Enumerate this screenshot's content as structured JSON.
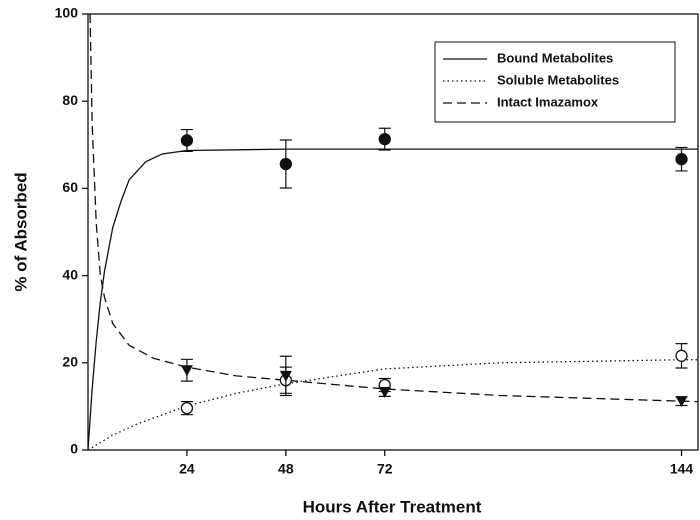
{
  "chart_data": {
    "type": "scatter",
    "xlabel": "Hours After Treatment",
    "ylabel": "% of Absorbed",
    "xlim": [
      0,
      148
    ],
    "ylim": [
      0,
      100
    ],
    "xticks": [
      24,
      48,
      72,
      144
    ],
    "yticks": [
      0,
      20,
      40,
      60,
      80,
      100
    ],
    "grid": false,
    "legend": "upper right",
    "series": [
      {
        "name": "Bound Metabolites",
        "color": "#111111",
        "line": "solid",
        "marker": "filled-circle",
        "x": [
          24,
          48,
          72,
          144
        ],
        "values": [
          71,
          65.6,
          71.3,
          66.7
        ],
        "errors": [
          2.5,
          5.5,
          2.5,
          2.7
        ],
        "fit_x": [
          0,
          1,
          2,
          3,
          4,
          6,
          8,
          10,
          14,
          18,
          24,
          48,
          72,
          144,
          148
        ],
        "fit_values": [
          0,
          13.9,
          25,
          34,
          41,
          51,
          57,
          62,
          66.1,
          67.9,
          68.7,
          69,
          69,
          69,
          69
        ]
      },
      {
        "name": "Soluble Metabolites",
        "color": "#111111",
        "line": "dotted",
        "marker": "open-circle",
        "x": [
          24,
          48,
          72,
          144
        ],
        "values": [
          9.6,
          16,
          14.9,
          21.6
        ],
        "errors": [
          1.5,
          3,
          1.5,
          2.8
        ],
        "fit_x": [
          0,
          6,
          12,
          24,
          36,
          48,
          72,
          100,
          144,
          148
        ],
        "fit_values": [
          0,
          3.4,
          6.0,
          10.1,
          13.0,
          15.2,
          18.6,
          20.0,
          20.7,
          20.7
        ]
      },
      {
        "name": "Intact Imazamox",
        "color": "#111111",
        "line": "dashed",
        "marker": "filled-triangle-down",
        "x": [
          24,
          48,
          72,
          144
        ],
        "values": [
          18.3,
          17,
          13.3,
          11.2
        ],
        "errors": [
          2.5,
          4.5,
          1,
          1
        ],
        "fit_x": [
          0.5,
          1,
          2,
          3,
          4,
          6,
          10,
          16,
          24,
          36,
          48,
          72,
          100,
          144,
          148
        ],
        "fit_values": [
          100,
          75,
          52,
          40,
          35,
          29,
          24,
          21,
          19,
          17,
          16,
          14,
          12.5,
          11.2,
          11.1
        ]
      }
    ]
  }
}
